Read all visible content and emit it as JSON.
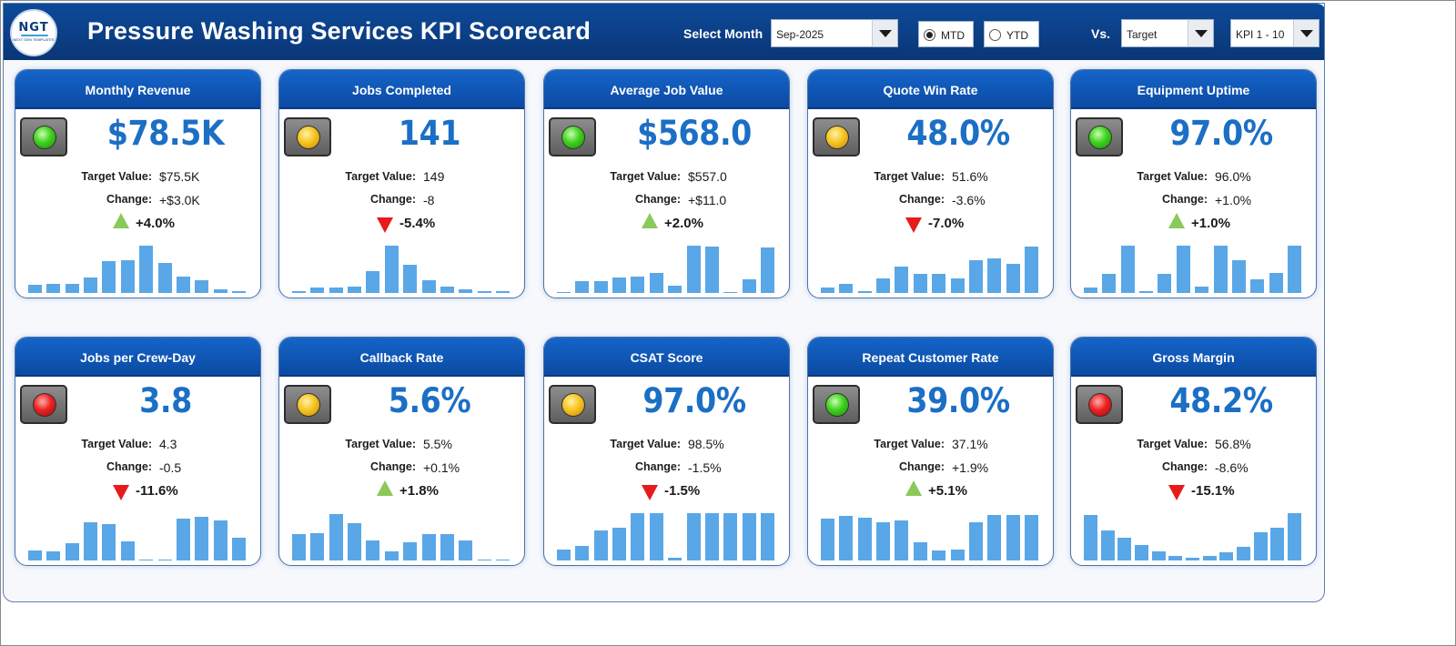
{
  "header": {
    "logo_text": "NGT",
    "logo_subtext": "NEXT GEN TEMPLATES",
    "title": "Pressure Washing Services KPI Scorecard",
    "select_month_label": "Select Month",
    "month_value": "Sep-2025",
    "mtd_label": "MTD",
    "ytd_label": "YTD",
    "period_selected": "MTD",
    "vs_label": "Vs.",
    "compare_value": "Target",
    "kpi_range_value": "KPI 1 - 10"
  },
  "labels": {
    "target": "Target Value:",
    "change": "Change:"
  },
  "colors": {
    "header_blue": "#0b3f86",
    "value_blue": "#1b6fc4",
    "bar_blue": "#5aa7e8",
    "up_green": "#8ac95a",
    "down_red": "#e81a1a"
  },
  "cards": [
    {
      "title": "Monthly Revenue",
      "status": "green",
      "value": "$78.5K",
      "target": "$75.5K",
      "change": "+$3.0K",
      "direction": "up",
      "pct": "+4.0%",
      "trend": [
        0.17,
        0.19,
        0.2,
        0.33,
        0.67,
        0.69,
        1.0,
        0.64,
        0.35,
        0.26,
        0.08,
        0.03
      ]
    },
    {
      "title": "Jobs Completed",
      "status": "amber",
      "value": "141",
      "target": "149",
      "change": "-8",
      "direction": "down",
      "pct": "-5.4%",
      "trend": [
        0.04,
        0.11,
        0.11,
        0.14,
        0.46,
        1.0,
        0.6,
        0.27,
        0.14,
        0.07,
        0.04,
        0.03
      ]
    },
    {
      "title": "Average Job Value",
      "status": "green",
      "value": "$568.0",
      "target": "$557.0",
      "change": "+$11.0",
      "direction": "up",
      "pct": "+2.0%",
      "trend": [
        0.02,
        0.25,
        0.25,
        0.33,
        0.35,
        0.43,
        0.15,
        1.0,
        0.98,
        0.02,
        0.29,
        0.96
      ]
    },
    {
      "title": "Quote Win Rate",
      "status": "amber",
      "value": "48.0%",
      "target": "51.6%",
      "change": "-3.6%",
      "direction": "down",
      "pct": "-7.0%",
      "trend": [
        0.11,
        0.2,
        0.04,
        0.3,
        0.56,
        0.41,
        0.41,
        0.3,
        0.7,
        0.74,
        0.61,
        0.98
      ]
    },
    {
      "title": "Equipment Uptime",
      "status": "green",
      "value": "97.0%",
      "target": "96.0%",
      "change": "+1.0%",
      "direction": "up",
      "pct": "+1.0%",
      "trend": [
        0.11,
        0.41,
        1.0,
        0.03,
        0.41,
        1.0,
        0.13,
        1.0,
        0.69,
        0.28,
        0.43,
        1.0
      ]
    },
    {
      "title": "Jobs per Crew-Day",
      "status": "red",
      "value": "3.8",
      "target": "4.3",
      "change": "-0.5",
      "direction": "down",
      "pct": "-11.6%",
      "trend": [
        0.22,
        0.2,
        0.37,
        0.8,
        0.76,
        0.4,
        0.02,
        0.02,
        0.89,
        0.93,
        0.85,
        0.48
      ]
    },
    {
      "title": "Callback Rate",
      "status": "amber",
      "value": "5.6%",
      "target": "5.5%",
      "change": "+0.1%",
      "direction": "up",
      "pct": "+1.8%",
      "trend": [
        0.56,
        0.57,
        0.98,
        0.78,
        0.43,
        0.19,
        0.39,
        0.56,
        0.56,
        0.43,
        0.02,
        0.02
      ]
    },
    {
      "title": "CSAT Score",
      "status": "amber",
      "value": "97.0%",
      "target": "98.5%",
      "change": "-1.5%",
      "direction": "down",
      "pct": "-1.5%",
      "trend": [
        0.24,
        0.31,
        0.63,
        0.7,
        1.0,
        1.0,
        0.06,
        1.0,
        1.0,
        1.0,
        1.0,
        1.0
      ]
    },
    {
      "title": "Repeat Customer Rate",
      "status": "green",
      "value": "39.0%",
      "target": "37.1%",
      "change": "+1.9%",
      "direction": "up",
      "pct": "+5.1%",
      "trend": [
        0.89,
        0.94,
        0.91,
        0.81,
        0.85,
        0.39,
        0.22,
        0.24,
        0.8,
        0.96,
        0.96,
        0.96
      ]
    },
    {
      "title": "Gross Margin",
      "status": "red",
      "value": "48.2%",
      "target": "56.8%",
      "change": "-8.6%",
      "direction": "down",
      "pct": "-15.1%",
      "trend": [
        0.96,
        0.63,
        0.48,
        0.33,
        0.2,
        0.09,
        0.06,
        0.09,
        0.17,
        0.28,
        0.59,
        0.7,
        1.0
      ]
    }
  ]
}
